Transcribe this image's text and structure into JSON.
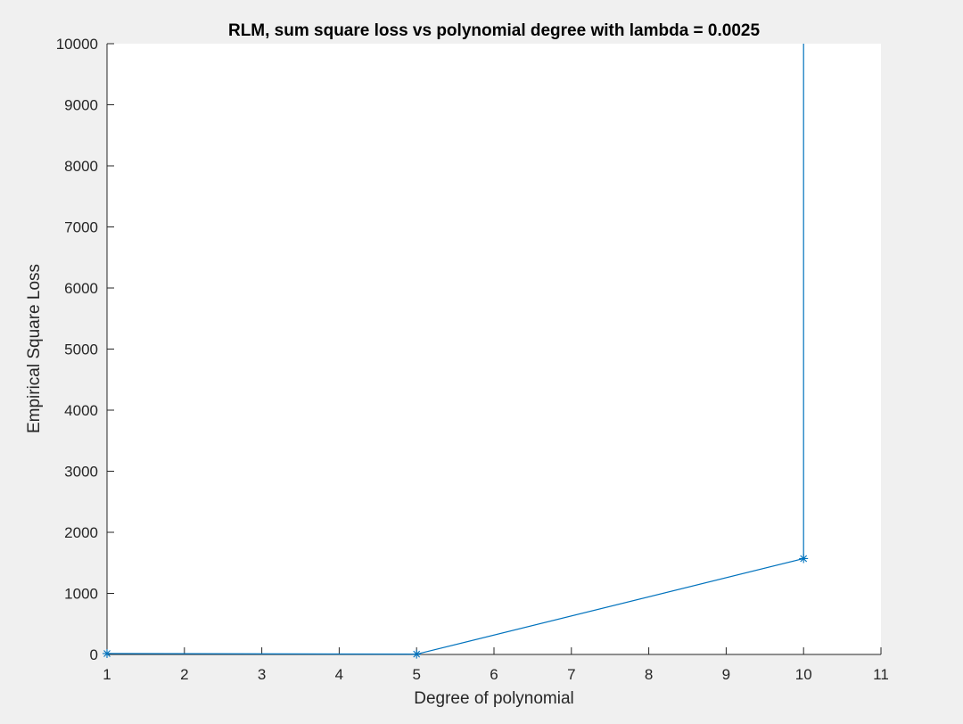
{
  "chart_data": {
    "type": "line",
    "title": "RLM, sum square loss vs polynomial degree with lambda = 0.0025",
    "xlabel": "Degree of polynomial",
    "ylabel": "Empirical Square Loss",
    "xlim": [
      1,
      11
    ],
    "ylim": [
      0,
      10000
    ],
    "x_ticks": [
      1,
      2,
      3,
      4,
      5,
      6,
      7,
      8,
      9,
      10,
      11
    ],
    "y_ticks": [
      0,
      1000,
      2000,
      3000,
      4000,
      5000,
      6000,
      7000,
      8000,
      9000,
      10000
    ],
    "grid": false,
    "marker": "asterisk",
    "series": [
      {
        "color": "#0072bd",
        "x": [
          1,
          5,
          10,
          10
        ],
        "y": [
          15,
          5,
          1570,
          10000
        ],
        "marked_points": [
          0,
          1,
          2
        ]
      }
    ]
  },
  "colors": {
    "figure_background": "#f0f0f0",
    "axes_background": "#ffffff",
    "axis_line": "#262626",
    "series": "#0072bd"
  }
}
